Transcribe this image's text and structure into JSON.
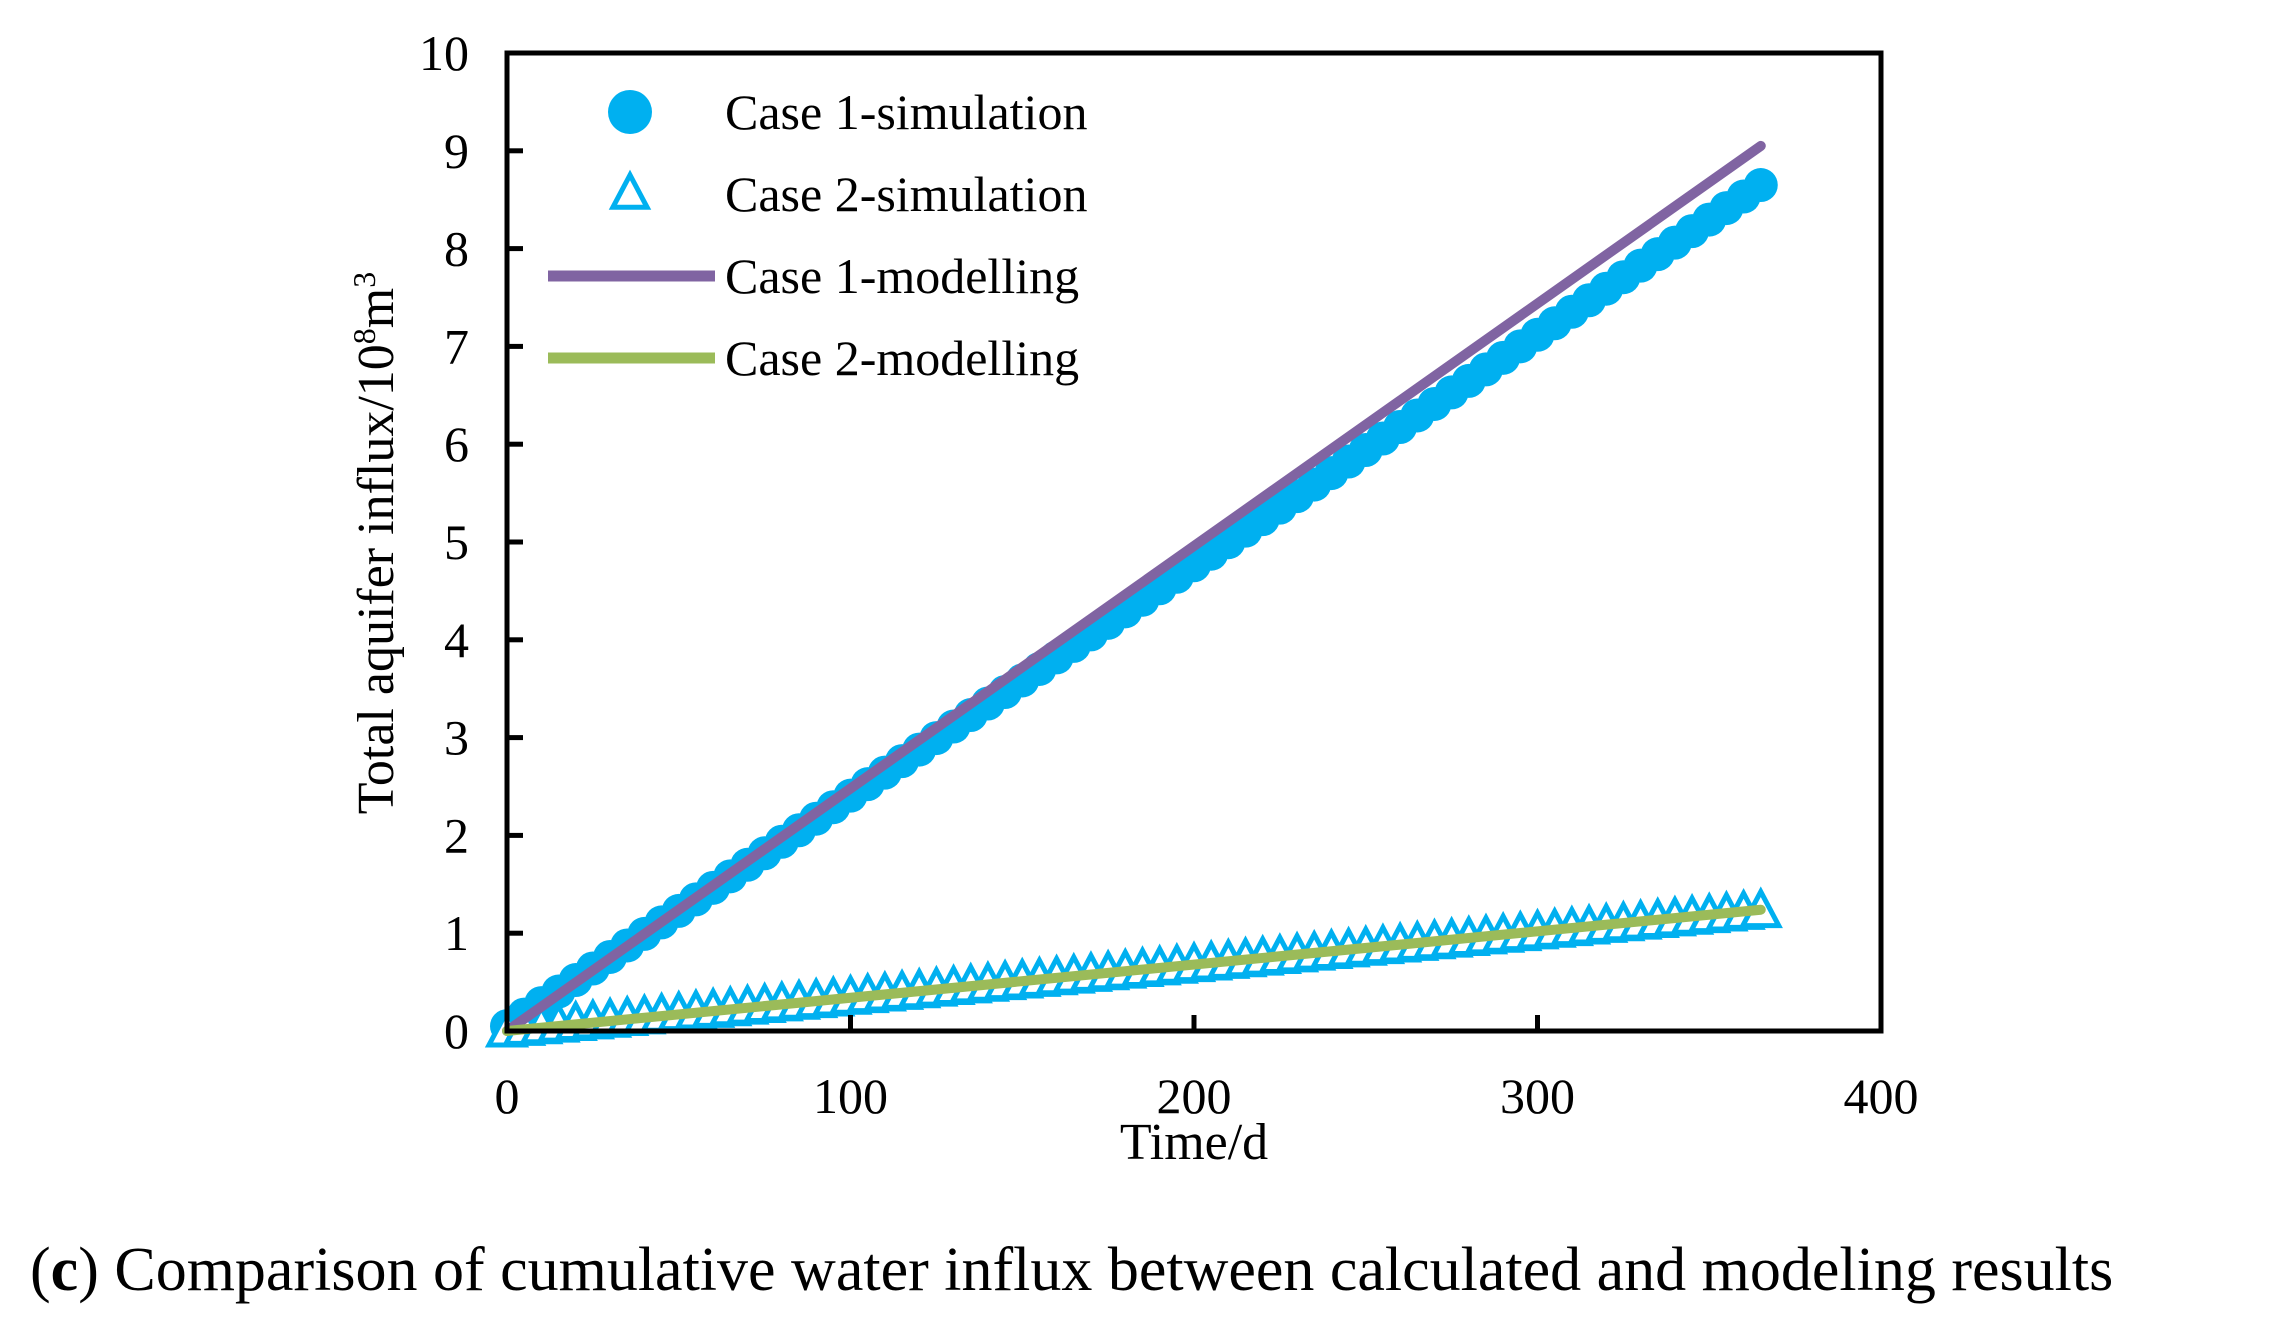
{
  "chart_data": {
    "type": "scatter",
    "title": "",
    "xlabel": "Time/d",
    "ylabel_main": "Total aquifer influx/10",
    "ylabel_sup1": "8",
    "ylabel_mid": "m",
    "ylabel_sup2": "3",
    "xlim": [
      0,
      400
    ],
    "ylim": [
      0,
      10
    ],
    "x_ticks": [
      0,
      100,
      200,
      300,
      400
    ],
    "x_tick_labels": [
      "0",
      "100",
      "200",
      "300",
      "400"
    ],
    "y_ticks": [
      0,
      1,
      2,
      3,
      4,
      5,
      6,
      7,
      8,
      9,
      10
    ],
    "y_tick_labels": [
      "0",
      "1",
      "2",
      "3",
      "4",
      "5",
      "6",
      "7",
      "8",
      "9",
      "10"
    ],
    "legend_position": "top-left",
    "series": [
      {
        "name": "Case 1-simulation",
        "kind": "markers",
        "marker": "circle",
        "color": "#00B0F0",
        "x_start": 0,
        "x_end": 365,
        "x_step": 5,
        "y_start": 0.05,
        "y_end": 8.65
      },
      {
        "name": "Case 2-simulation",
        "kind": "markers",
        "marker": "triangle",
        "color": "#00B0F0",
        "x_start": 0,
        "x_end": 365,
        "x_step": 5,
        "y_start": 0.0,
        "y_end": 1.22
      },
      {
        "name": "Case 1-modelling",
        "kind": "line",
        "color": "#8064A2",
        "x": [
          0,
          365
        ],
        "y": [
          0,
          9.05
        ]
      },
      {
        "name": "Case 2-modelling",
        "kind": "line",
        "color": "#9BBB59",
        "x": [
          0,
          365
        ],
        "y": [
          0,
          1.24
        ]
      }
    ]
  },
  "caption": {
    "label": "c",
    "text": " Comparison of cumulative water influx between calculated and modeling results"
  }
}
